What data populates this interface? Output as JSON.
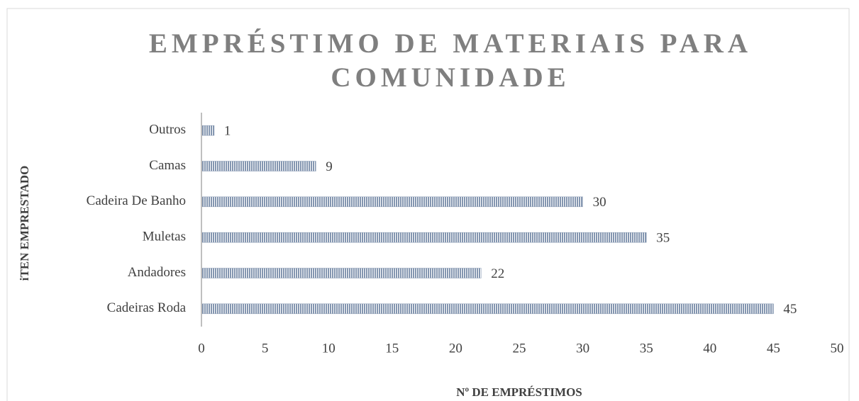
{
  "chart_data": {
    "type": "bar",
    "orientation": "horizontal",
    "title": "EMPRÉSTIMO DE MATERIAIS PARA COMUNIDADE",
    "x_label": "Nº DE EMPRÉSTIMOS",
    "y_label": "iTEN EMPRESTADO",
    "categories": [
      "Outros",
      "Camas",
      "Cadeira De Banho",
      "Muletas",
      "Andadores",
      "Cadeiras Roda"
    ],
    "values": [
      1,
      9,
      30,
      35,
      22,
      45
    ],
    "color": "#8496b0",
    "xlim": [
      0,
      50
    ],
    "xticks": [
      0,
      5,
      10,
      15,
      20,
      25,
      30,
      35,
      40,
      45,
      50
    ],
    "grid": false
  }
}
